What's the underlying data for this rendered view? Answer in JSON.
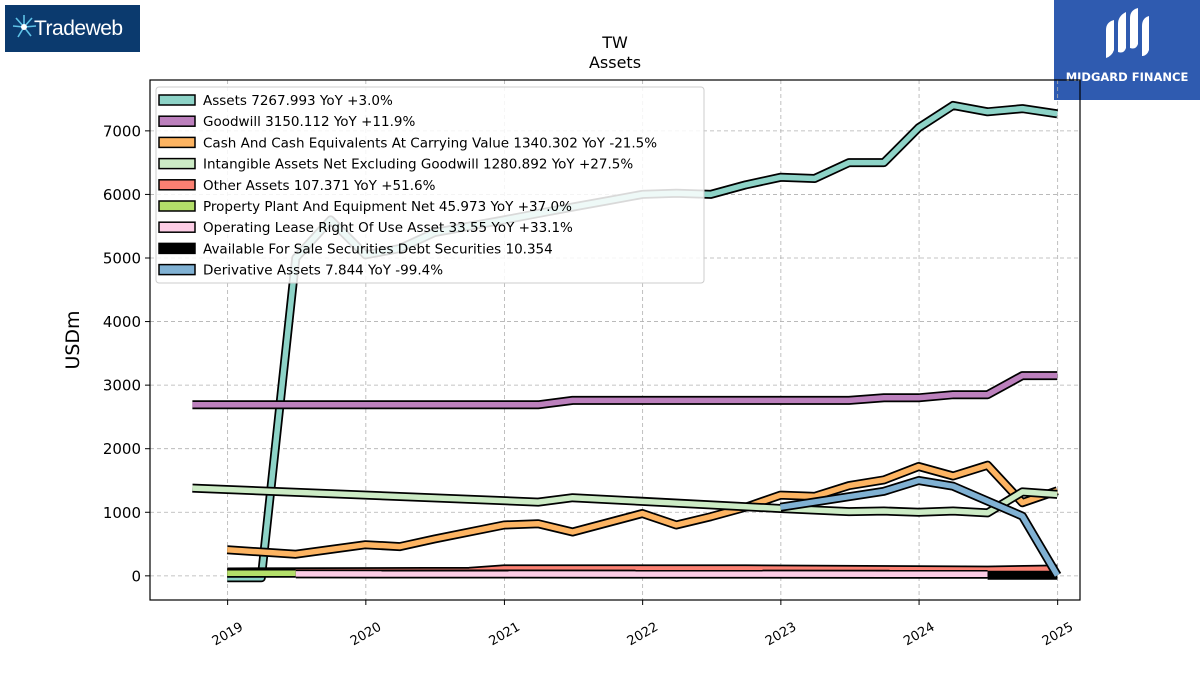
{
  "logos": {
    "left": {
      "text": "Tradeweb"
    },
    "right": {
      "text": "MIDGARD FINANCE"
    }
  },
  "chart_data": {
    "type": "line",
    "title": "TW",
    "subtitle": "Assets",
    "xlabel": "",
    "ylabel": "USDm",
    "xlim": [
      "2018-06-10",
      "2025-03-01"
    ],
    "ylim": [
      -380,
      7800
    ],
    "x_ticks": [
      "2019",
      "2020",
      "2021",
      "2022",
      "2023",
      "2024",
      "2025"
    ],
    "y_ticks": [
      0,
      1000,
      2000,
      3000,
      4000,
      5000,
      6000,
      7000
    ],
    "grid": true,
    "legend_position": "top-left",
    "series": [
      {
        "name": "Assets  7267.993 YoY +3.0%",
        "color": "#8dd3c7",
        "points": [
          [
            "2018-12-31",
            -30
          ],
          [
            "2019-03-31",
            -30
          ],
          [
            "2019-06-30",
            5000
          ],
          [
            "2019-09-30",
            5600
          ],
          [
            "2019-12-31",
            5050
          ],
          [
            "2020-03-31",
            5150
          ],
          [
            "2020-06-30",
            5400
          ],
          [
            "2020-09-30",
            5500
          ],
          [
            "2020-12-31",
            5600
          ],
          [
            "2021-03-31",
            5700
          ],
          [
            "2021-06-30",
            5800
          ],
          [
            "2021-09-30",
            5900
          ],
          [
            "2021-12-31",
            6000
          ],
          [
            "2022-03-31",
            6020
          ],
          [
            "2022-06-30",
            6000
          ],
          [
            "2022-09-30",
            6150
          ],
          [
            "2022-12-31",
            6270
          ],
          [
            "2023-03-31",
            6250
          ],
          [
            "2023-06-30",
            6500
          ],
          [
            "2023-09-30",
            6500
          ],
          [
            "2023-12-31",
            7050
          ],
          [
            "2024-03-31",
            7400
          ],
          [
            "2024-06-30",
            7300
          ],
          [
            "2024-09-30",
            7350
          ],
          [
            "2024-12-31",
            7268
          ]
        ]
      },
      {
        "name": "Goodwill  3150.112 YoY +11.9%",
        "color": "#bc80bd",
        "points": [
          [
            "2018-09-30",
            2690
          ],
          [
            "2021-03-31",
            2690
          ],
          [
            "2021-06-30",
            2760
          ],
          [
            "2023-06-30",
            2760
          ],
          [
            "2023-09-30",
            2800
          ],
          [
            "2023-12-31",
            2800
          ],
          [
            "2024-03-31",
            2850
          ],
          [
            "2024-06-30",
            2850
          ],
          [
            "2024-09-30",
            3150
          ],
          [
            "2024-12-31",
            3150
          ]
        ]
      },
      {
        "name": "Cash And Cash Equivalents At Carrying Value  1340.302 YoY -21.5%",
        "color": "#fdb462",
        "points": [
          [
            "2018-12-31",
            410
          ],
          [
            "2019-06-30",
            340
          ],
          [
            "2019-12-31",
            490
          ],
          [
            "2020-03-31",
            460
          ],
          [
            "2020-06-30",
            580
          ],
          [
            "2020-12-31",
            800
          ],
          [
            "2021-03-31",
            820
          ],
          [
            "2021-06-30",
            690
          ],
          [
            "2021-12-31",
            980
          ],
          [
            "2022-03-31",
            800
          ],
          [
            "2022-06-30",
            930
          ],
          [
            "2022-09-30",
            1080
          ],
          [
            "2022-12-31",
            1270
          ],
          [
            "2023-03-31",
            1250
          ],
          [
            "2023-06-30",
            1420
          ],
          [
            "2023-09-30",
            1510
          ],
          [
            "2023-12-31",
            1720
          ],
          [
            "2024-03-31",
            1570
          ],
          [
            "2024-06-30",
            1740
          ],
          [
            "2024-09-30",
            1150
          ],
          [
            "2024-12-31",
            1340
          ]
        ]
      },
      {
        "name": "Intangible Assets Net Excluding Goodwill  1280.892 YoY +27.5%",
        "color": "#ccebc5",
        "points": [
          [
            "2018-09-30",
            1380
          ],
          [
            "2021-03-31",
            1160
          ],
          [
            "2021-06-30",
            1230
          ],
          [
            "2022-12-31",
            1060
          ],
          [
            "2023-06-30",
            1010
          ],
          [
            "2023-09-30",
            1020
          ],
          [
            "2023-12-31",
            1000
          ],
          [
            "2024-03-31",
            1020
          ],
          [
            "2024-06-30",
            990
          ],
          [
            "2024-09-30",
            1320
          ],
          [
            "2024-12-31",
            1281
          ]
        ]
      },
      {
        "name": "Other Assets  107.371 YoY +51.6%",
        "color": "#fb8072",
        "points": [
          [
            "2018-12-31",
            60
          ],
          [
            "2020-09-30",
            70
          ],
          [
            "2020-12-31",
            110
          ],
          [
            "2022-09-30",
            110
          ],
          [
            "2024-06-30",
            90
          ],
          [
            "2024-12-31",
            107
          ]
        ]
      },
      {
        "name": "Property Plant And Equipment Net  45.973 YoY +37.0%",
        "color": "#b3de69",
        "points": [
          [
            "2018-12-31",
            40
          ],
          [
            "2019-06-30",
            40
          ]
        ]
      },
      {
        "name": "Operating Lease Right Of Use Asset  33.55 YoY +33.1%",
        "color": "#fccde5",
        "points": [
          [
            "2019-06-30",
            30
          ],
          [
            "2024-06-30",
            25
          ]
        ]
      },
      {
        "name": "Available For Sale Securities Debt Securities  10.354",
        "color": "#000000",
        "points": [
          [
            "2024-06-30",
            10
          ],
          [
            "2024-12-31",
            10
          ]
        ]
      },
      {
        "name": "Derivative Assets  7.844 YoY -99.4%",
        "color": "#80b1d3",
        "points": [
          [
            "2022-12-31",
            1080
          ],
          [
            "2023-09-30",
            1330
          ],
          [
            "2023-12-31",
            1500
          ],
          [
            "2024-03-31",
            1410
          ],
          [
            "2024-09-30",
            940
          ],
          [
            "2024-12-31",
            8
          ]
        ]
      }
    ]
  }
}
